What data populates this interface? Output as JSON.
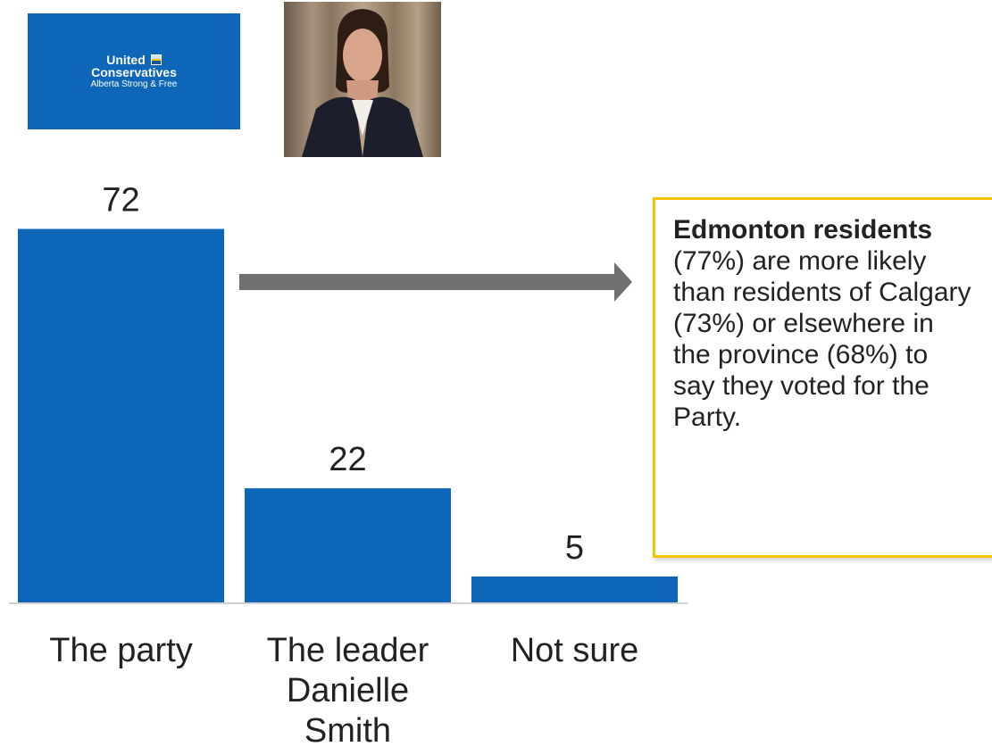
{
  "logo": {
    "line1": "United",
    "line2": "Conservatives",
    "line3": "Alberta Strong & Free",
    "icon": "alberta-flag-icon",
    "color": "#0d66b8"
  },
  "photo": {
    "icon": "leader-portrait"
  },
  "chart_data": {
    "type": "bar",
    "categories": [
      "The party",
      "The leader Danielle Smith",
      "Not sure"
    ],
    "category_lines": [
      [
        "The party"
      ],
      [
        "The leader",
        "Danielle",
        "Smith"
      ],
      [
        "Not sure"
      ]
    ],
    "values": [
      72,
      22,
      5
    ],
    "data_labels": [
      "72",
      "22",
      "5"
    ],
    "ylim": [
      0,
      80
    ],
    "bar_color": "#0d66b8",
    "grid": false
  },
  "note": {
    "bold": "Edmonton residents",
    "text": " (77%) are more likely than residents of Calgary (73%) or elsewhere in the province (68%) to say they voted for the Party.",
    "border_color": "#f2c500"
  }
}
